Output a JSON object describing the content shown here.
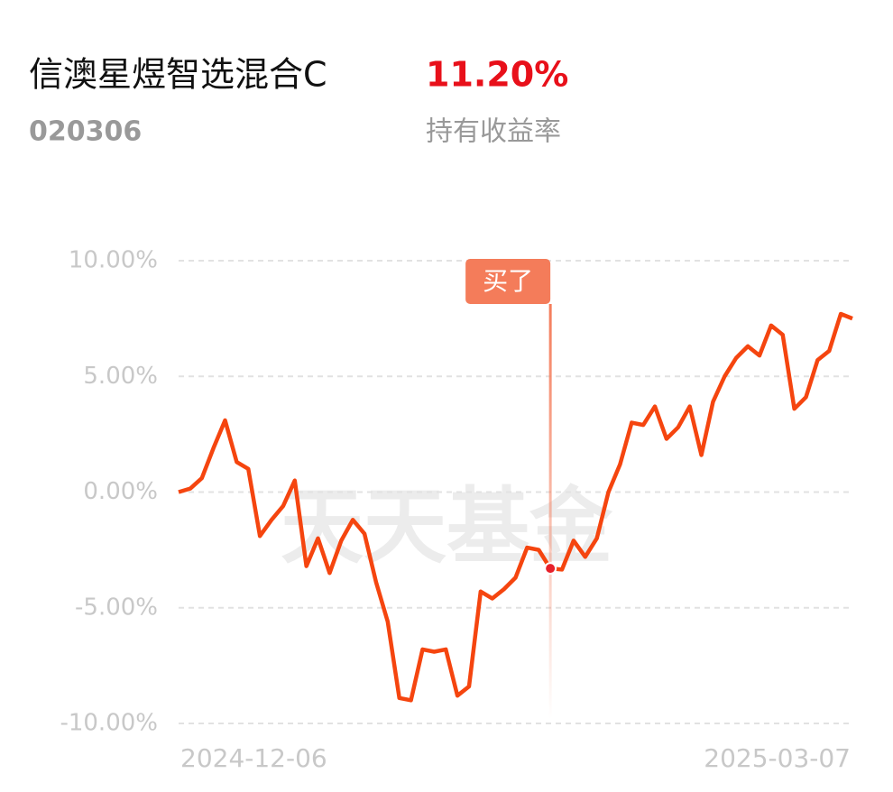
{
  "header": {
    "fund_name": "信澳星煜智选混合C",
    "return_value": "11.20%",
    "fund_code": "020306",
    "return_label": "持有收益率"
  },
  "chart_data": {
    "type": "line",
    "categories": [
      "2024-12-06",
      null,
      null,
      null,
      null,
      null,
      null,
      null,
      null,
      null,
      null,
      null,
      null,
      null,
      null,
      null,
      null,
      null,
      null,
      null,
      null,
      null,
      null,
      null,
      null,
      null,
      null,
      null,
      null,
      null,
      null,
      null,
      null,
      null,
      null,
      null,
      null,
      null,
      null,
      null,
      null,
      null,
      null,
      null,
      null,
      null,
      null,
      null,
      null,
      null,
      null,
      null,
      null,
      null,
      null,
      null,
      null,
      null,
      "2025-03-07"
    ],
    "values": [
      0.0,
      0.15,
      0.6,
      1.9,
      3.1,
      1.3,
      1.0,
      -1.9,
      -1.2,
      -0.6,
      0.5,
      -3.2,
      -2.0,
      -3.5,
      -2.1,
      -1.2,
      -1.8,
      -3.9,
      -5.6,
      -8.9,
      -9.0,
      -6.8,
      -6.9,
      -6.8,
      -8.8,
      -8.4,
      -4.3,
      -4.6,
      -4.2,
      -3.7,
      -2.4,
      -2.5,
      -3.3,
      -3.35,
      -2.1,
      -2.8,
      -2.0,
      0.0,
      1.2,
      3.0,
      2.9,
      3.7,
      2.3,
      2.8,
      3.7,
      1.6,
      3.9,
      5.0,
      5.8,
      6.3,
      5.9,
      7.2,
      6.8,
      3.6,
      4.1,
      5.7,
      6.1,
      7.7,
      7.5
    ],
    "color": "#f5450f",
    "ylim": [
      -10,
      10
    ],
    "yticks": [
      {
        "value": -10,
        "label": "-10.00%"
      },
      {
        "value": -5,
        "label": "-5.00%"
      },
      {
        "value": 0,
        "label": "0.00%"
      },
      {
        "value": 5,
        "label": "5.00%"
      },
      {
        "value": 10,
        "label": "10.00%"
      }
    ],
    "grid": true,
    "annotation": {
      "text": "买了",
      "index": 32
    },
    "watermark": "天天基金"
  }
}
